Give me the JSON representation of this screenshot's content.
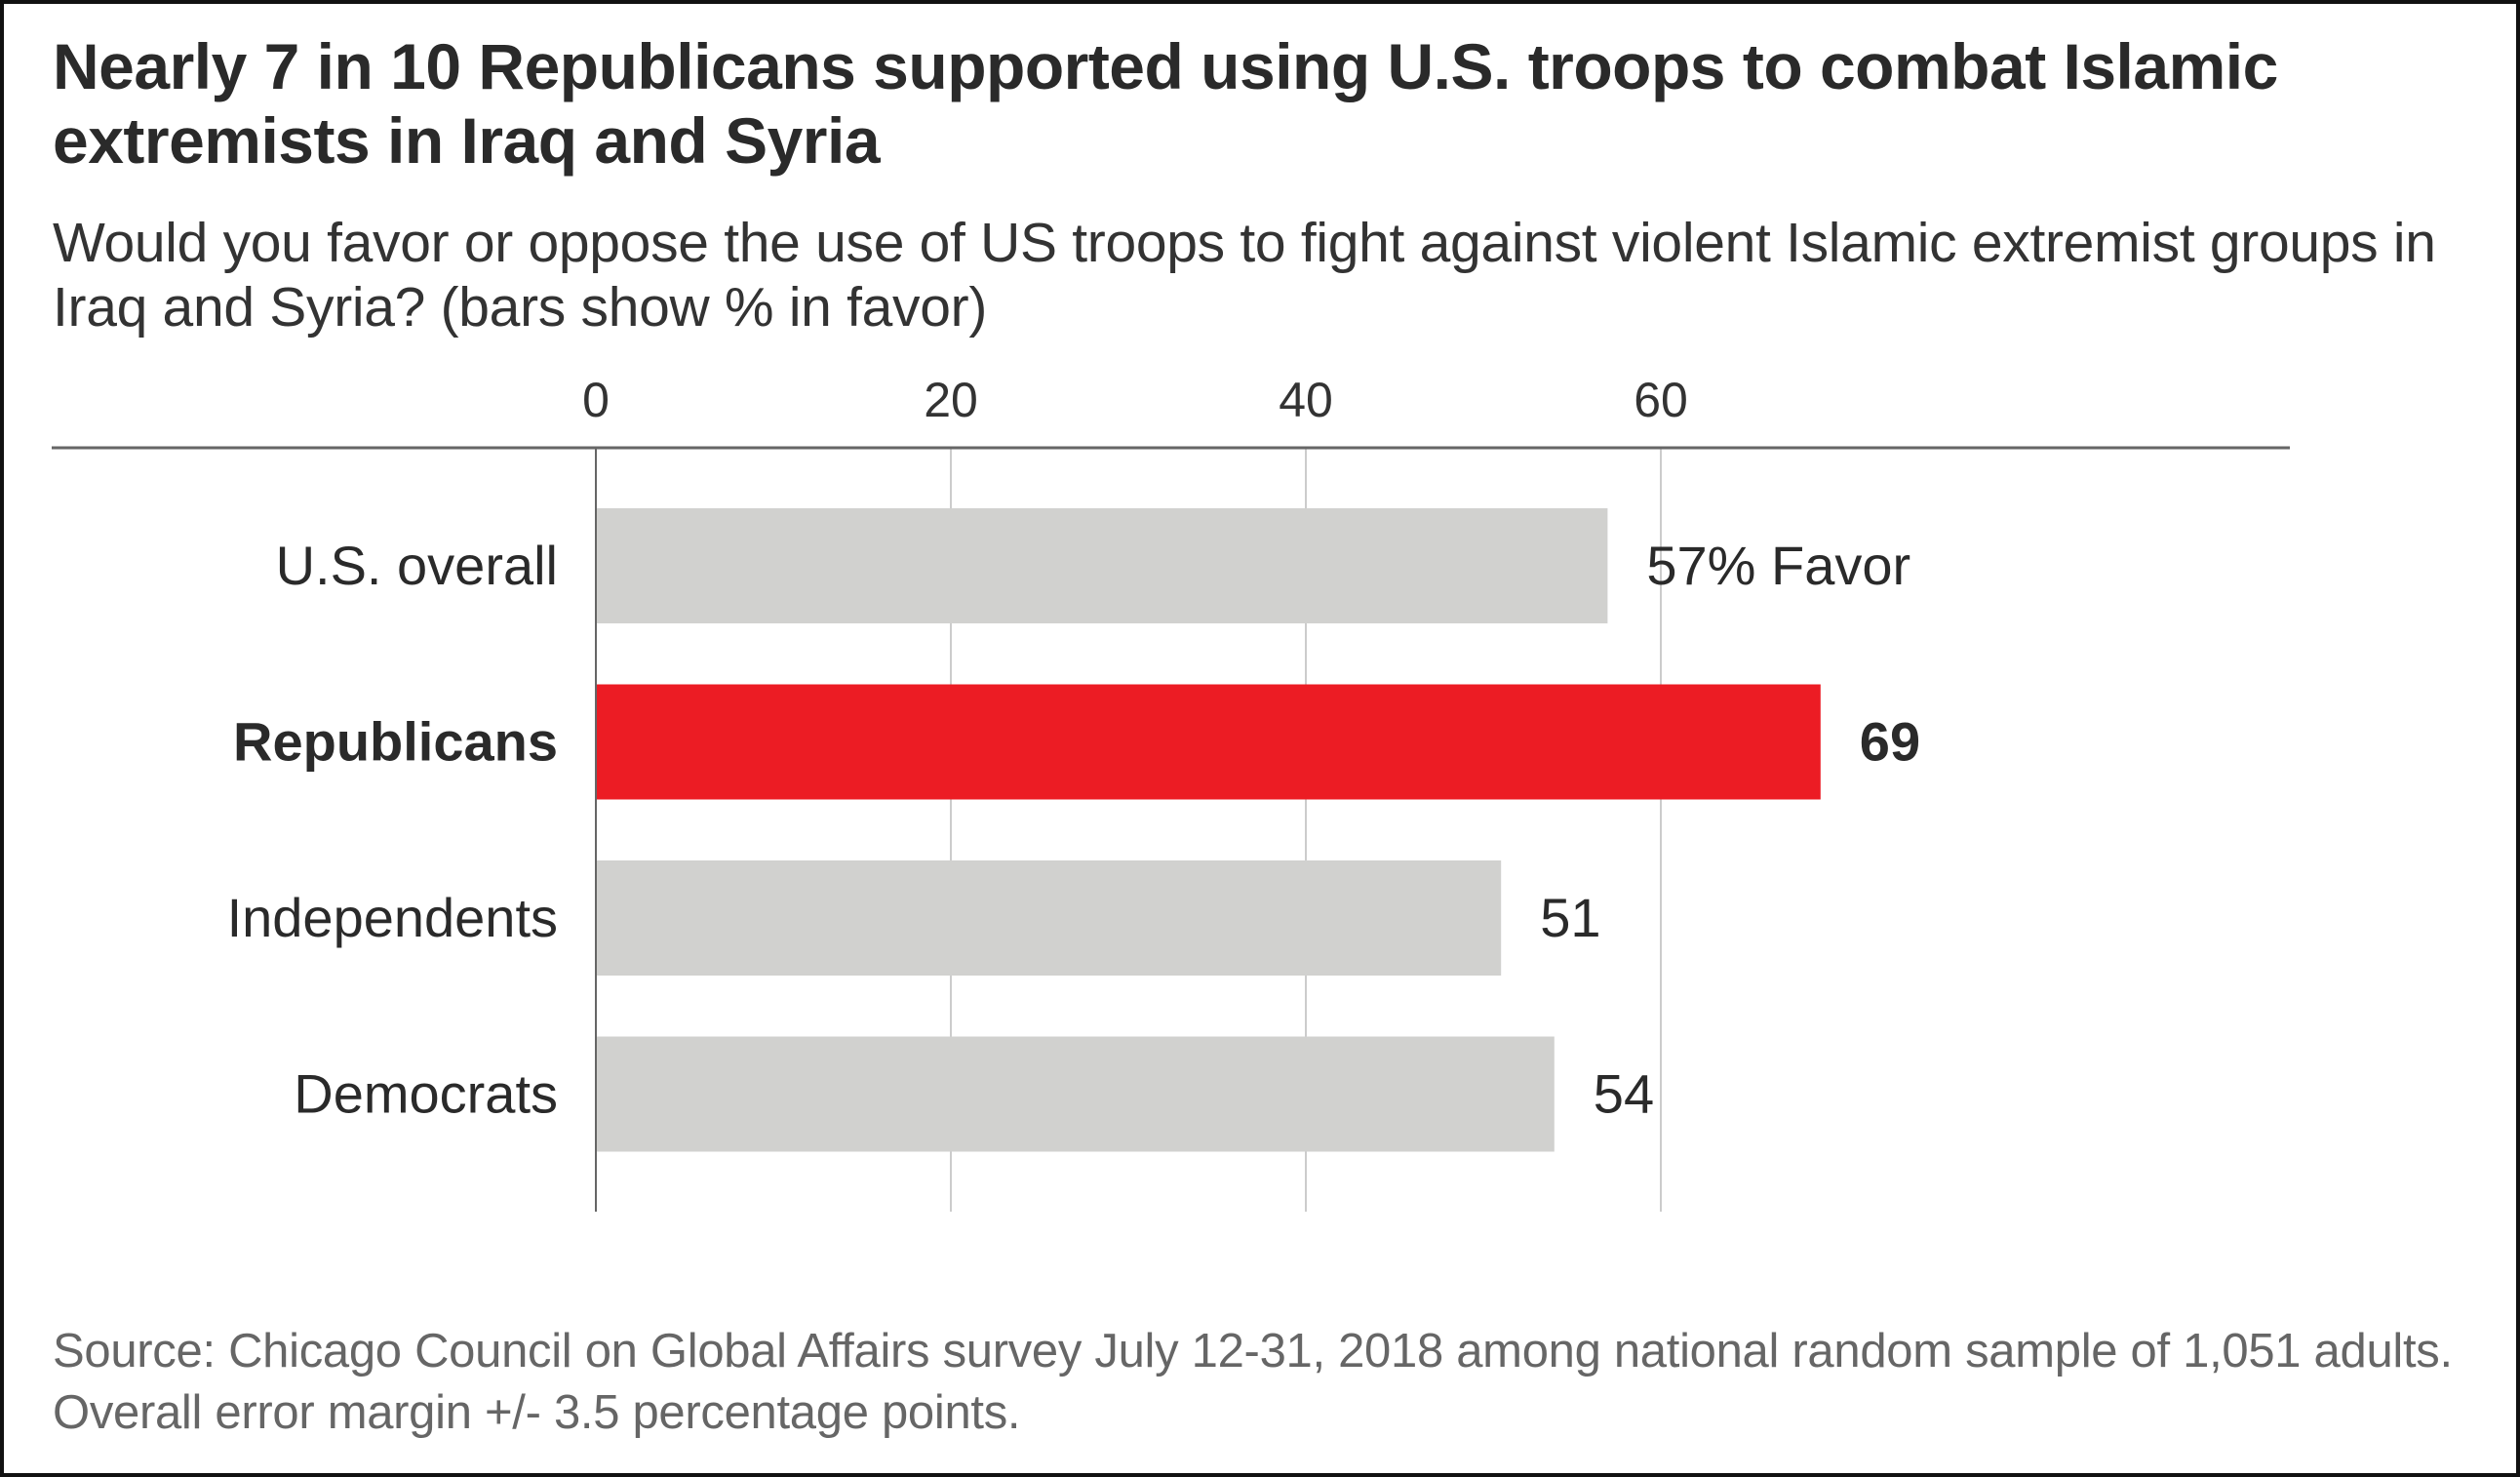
{
  "chart_data": {
    "type": "bar",
    "orientation": "horizontal",
    "title": "Nearly 7 in 10 Republicans supported using U.S. troops to combat Islamic extremists in Iraq and Syria",
    "subtitle": "Would you favor or oppose the use of US troops to fight against violent Islamic extremist groups in Iraq and Syria? (bars show % in favor)",
    "xlabel": "",
    "ylabel": "",
    "xlim": [
      0,
      60
    ],
    "xticks": [
      0,
      20,
      40,
      60
    ],
    "xtick_labels": [
      "0",
      "20",
      "40",
      "60"
    ],
    "axis_position": "top",
    "grid": true,
    "categories": [
      "U.S. overall",
      "Republicans",
      "Independents",
      "Democrats"
    ],
    "values": [
      57,
      69,
      51,
      54
    ],
    "data_labels": [
      "57% Favor",
      "69",
      "51",
      "54"
    ],
    "highlight": "Republicans",
    "colors": {
      "default_bar": "#d1d1cf",
      "highlight_bar": "#ec1c24",
      "text": "#2a2a2a",
      "gridline": "#cccccc",
      "axis": "#666666"
    },
    "source": "Source: Chicago Council on Global Affairs survey July 12-31, 2018 among national random sample of 1,051 adults. Overall error margin +/- 3.5 percentage points."
  }
}
